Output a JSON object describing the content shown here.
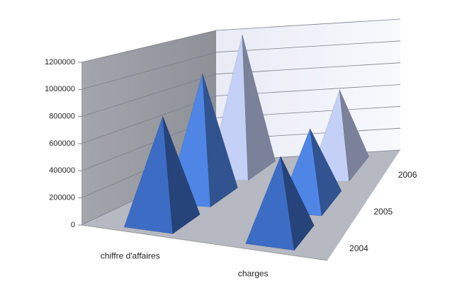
{
  "chart_data": {
    "type": "pyramid3d",
    "categories": [
      "chiffre d'affaires",
      "charges"
    ],
    "series": [
      {
        "name": "2004",
        "color": "#3d6cc4",
        "values": [
          800000,
          600000
        ]
      },
      {
        "name": "2005",
        "color": "#4f86e6",
        "values": [
          1000000,
          600000
        ]
      },
      {
        "name": "2006",
        "color": "#c4d0f6",
        "values": [
          1200000,
          700000
        ]
      }
    ],
    "ylim": [
      0,
      1200000
    ],
    "yticks": [
      0,
      200000,
      400000,
      600000,
      800000,
      1000000,
      1200000
    ],
    "grid": true
  }
}
